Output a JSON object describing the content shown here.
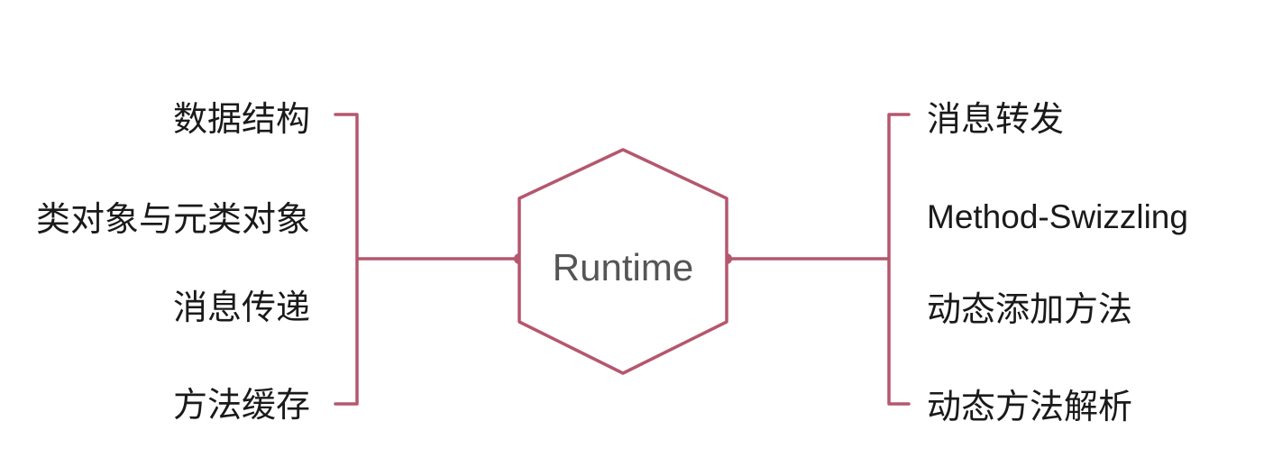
{
  "center": {
    "label": "Runtime"
  },
  "left_items": [
    {
      "label": "数据结构"
    },
    {
      "label": "类对象与元类对象"
    },
    {
      "label": "消息传递"
    },
    {
      "label": "方法缓存"
    }
  ],
  "right_items": [
    {
      "label": "消息转发"
    },
    {
      "label": "Method-Swizzling"
    },
    {
      "label": "动态添加方法"
    },
    {
      "label": "动态方法解析"
    }
  ],
  "colors": {
    "line": "#b5576e",
    "text": "#1a1a1a",
    "center_text": "#555555",
    "background": "#ffffff"
  }
}
